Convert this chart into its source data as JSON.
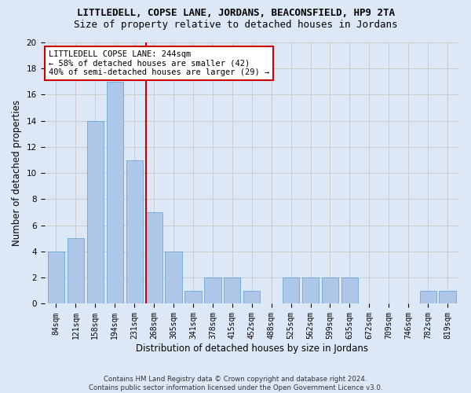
{
  "title": "LITTLEDELL, COPSE LANE, JORDANS, BEACONSFIELD, HP9 2TA",
  "subtitle": "Size of property relative to detached houses in Jordans",
  "xlabel": "Distribution of detached houses by size in Jordans",
  "ylabel": "Number of detached properties",
  "footer_line1": "Contains HM Land Registry data © Crown copyright and database right 2024.",
  "footer_line2": "Contains public sector information licensed under the Open Government Licence v3.0.",
  "categories": [
    "84sqm",
    "121sqm",
    "158sqm",
    "194sqm",
    "231sqm",
    "268sqm",
    "305sqm",
    "341sqm",
    "378sqm",
    "415sqm",
    "452sqm",
    "488sqm",
    "525sqm",
    "562sqm",
    "599sqm",
    "635sqm",
    "672sqm",
    "709sqm",
    "746sqm",
    "782sqm",
    "819sqm"
  ],
  "values": [
    4,
    5,
    14,
    17,
    11,
    7,
    4,
    1,
    2,
    2,
    1,
    0,
    2,
    2,
    2,
    2,
    0,
    0,
    0,
    1,
    1
  ],
  "bar_color": "#aec6e8",
  "bar_edgecolor": "#5a9fd4",
  "vline_x": 4.58,
  "vline_color": "#cc0000",
  "annotation_text": "LITTLEDELL COPSE LANE: 244sqm\n← 58% of detached houses are smaller (42)\n40% of semi-detached houses are larger (29) →",
  "annotation_box_edgecolor": "#cc0000",
  "annotation_box_facecolor": "#ffffff",
  "ylim": [
    0,
    20
  ],
  "yticks": [
    0,
    2,
    4,
    6,
    8,
    10,
    12,
    14,
    16,
    18,
    20
  ],
  "grid_color": "#cccccc",
  "background_color": "#dce8f5",
  "title_fontsize": 9,
  "subtitle_fontsize": 9,
  "axis_label_fontsize": 8.5,
  "tick_fontsize": 7,
  "annotation_fontsize": 7.5
}
